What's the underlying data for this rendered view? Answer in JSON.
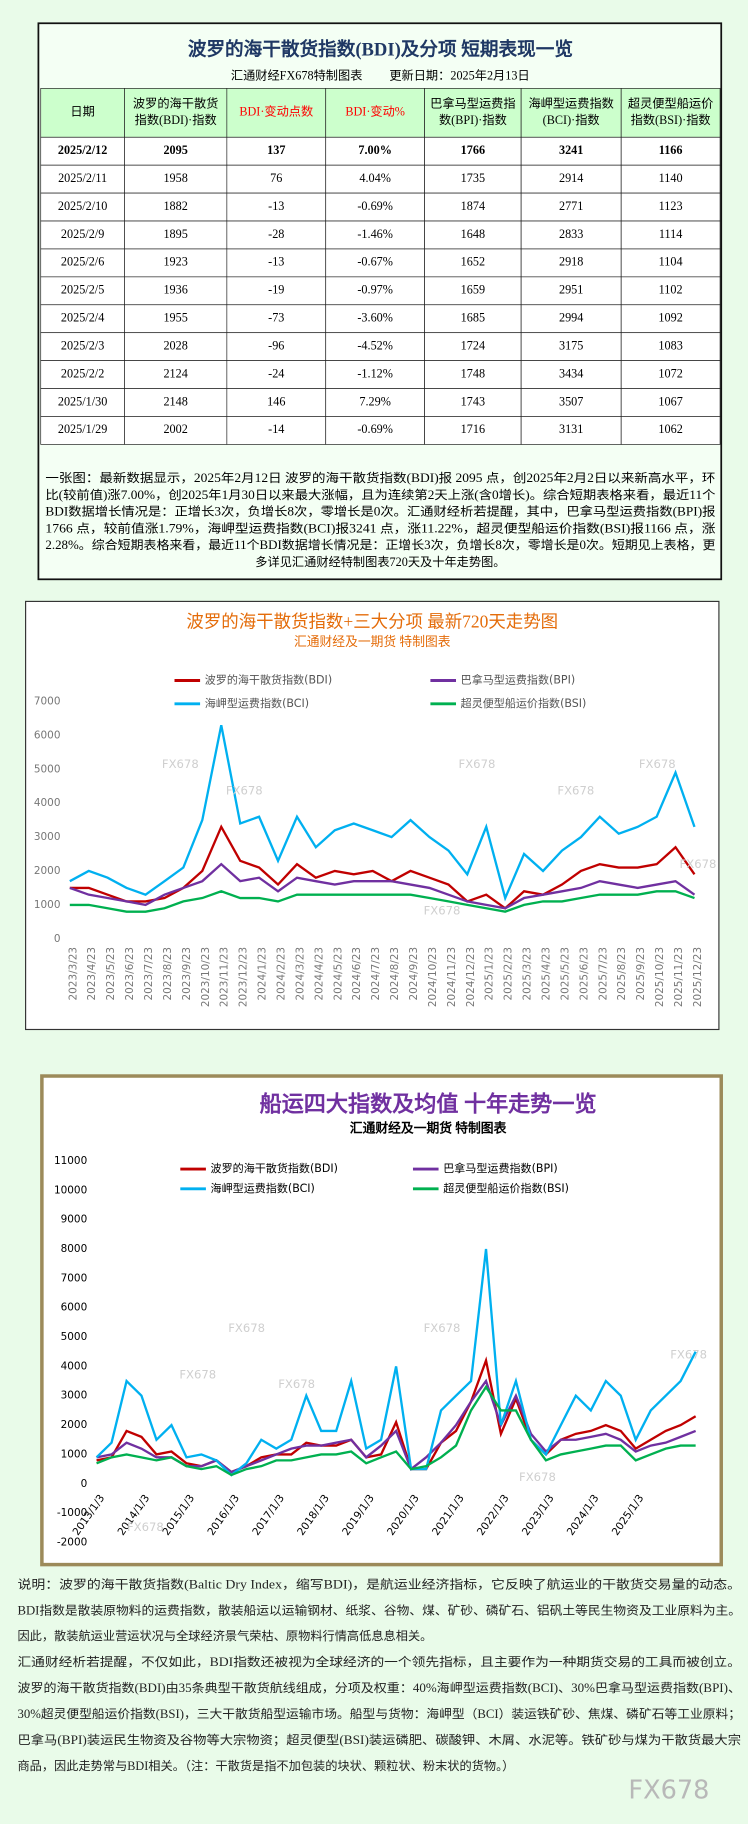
{
  "header": {
    "title": "波罗的海干散货指数(BDI)及分项 短期表现一览",
    "subtitle": "汇通财经FX678特制图表",
    "update": "更新日期：2025年2月13日"
  },
  "table": {
    "columns": [
      [
        "日期"
      ],
      [
        "波罗的海干散货",
        "指数(BDI)·指数"
      ],
      [
        "BDI·变动点数"
      ],
      [
        "BDI·变动%"
      ],
      [
        "巴拿马型运费指",
        "数(BPI)·指数"
      ],
      [
        "海岬型运费指数",
        "(BCI)·指数"
      ],
      [
        "超灵便型船运价",
        "指数(BSI)·指数"
      ]
    ],
    "rows": [
      [
        "2025/2/12",
        "2095",
        "137",
        "7.00%",
        "1766",
        "3241",
        "1166"
      ],
      [
        "2025/2/11",
        "1958",
        "76",
        "4.04%",
        "1735",
        "2914",
        "1140"
      ],
      [
        "2025/2/10",
        "1882",
        "-13",
        "-0.69%",
        "1874",
        "2771",
        "1123"
      ],
      [
        "2025/2/9",
        "1895",
        "-28",
        "-1.46%",
        "1648",
        "2833",
        "1114"
      ],
      [
        "2025/2/6",
        "1923",
        "-13",
        "-0.67%",
        "1652",
        "2918",
        "1104"
      ],
      [
        "2025/2/5",
        "1936",
        "-19",
        "-0.97%",
        "1659",
        "2951",
        "1102"
      ],
      [
        "2025/2/4",
        "1955",
        "-73",
        "-3.60%",
        "1685",
        "2994",
        "1092"
      ],
      [
        "2025/2/3",
        "2028",
        "-96",
        "-4.52%",
        "1724",
        "3175",
        "1083"
      ],
      [
        "2025/2/2",
        "2124",
        "-24",
        "-1.12%",
        "1748",
        "3434",
        "1072"
      ],
      [
        "2025/1/30",
        "2148",
        "146",
        "7.29%",
        "1743",
        "3507",
        "1067"
      ],
      [
        "2025/1/29",
        "2002",
        "-14",
        "-0.69%",
        "1716",
        "3131",
        "1062"
      ]
    ]
  },
  "summary": [
    "一张图：最新数据显示，2025年2月12日 波罗的海干散货指数(BDI)报 2095 点，创2025年2月2日以来新高水平，环",
    "比(较前值)涨7.00%，创2025年1月30日以来最大涨幅，且为连续第2天上涨(含0增长)。综合短期表格来看，最近11个",
    "BDI数据增长情况是：正增长3次，负增长8次，零增长是0次。汇通财经析若提醒，其中，巴拿马型运费指数(BPI)报",
    "1766 点，较前值涨1.79%，海岬型运费指数(BCI)报3241 点，涨11.22%，超灵便型船运价指数(BSI)报1166 点，涨",
    "2.28%。综合短期表格来看，最近11个BDI数据增长情况是：正增长3次，负增长8次，零增长是0次。短期见上表格，更",
    "多详见汇通财经特制图表720天及十年走势图。"
  ],
  "chart_data": [
    {
      "type": "line",
      "title": "波罗的海干散货指数+三大分项  最新720天走势图",
      "subtitle": "汇通财经及一期货  特制图表",
      "watermark": "FX678",
      "grid": false,
      "categories": [
        "2023/3/23",
        "2023/4/23",
        "2023/5/23",
        "2023/6/23",
        "2023/7/23",
        "2023/8/23",
        "2023/9/23",
        "2023/10/23",
        "2023/11/23",
        "2023/12/23",
        "2024/1/23",
        "2024/2/23",
        "2024/3/23",
        "2024/4/23",
        "2024/5/23",
        "2024/6/23",
        "2024/7/23",
        "2024/8/23",
        "2024/9/23",
        "2024/10/23",
        "2024/11/23",
        "2024/12/23",
        "2025/1/23",
        "2025/2/23",
        "2025/3/23",
        "2025/4/23",
        "2025/5/23",
        "2025/6/23",
        "2025/7/23",
        "2025/8/23",
        "2025/9/23",
        "2025/10/23",
        "2025/11/23",
        "2025/12/23"
      ],
      "ylim": [
        0,
        7000
      ],
      "yticks": [
        0,
        1000,
        2000,
        3000,
        4000,
        5000,
        6000,
        7000
      ],
      "series": [
        {
          "name": "波罗的海干散货指数(BDI)",
          "color": "#c00000",
          "values": [
            1500,
            1500,
            1300,
            1100,
            1100,
            1200,
            1500,
            2000,
            3300,
            2300,
            2100,
            1600,
            2200,
            1800,
            2000,
            1900,
            2000,
            1700,
            2000,
            1800,
            1600,
            1100,
            1300,
            900,
            1400,
            1300,
            1600,
            2000,
            2200,
            2100,
            2100,
            2200,
            2700,
            1900
          ]
        },
        {
          "name": "巴拿马型运费指数(BPI)",
          "color": "#7030a0",
          "values": [
            1500,
            1300,
            1200,
            1100,
            1000,
            1300,
            1500,
            1700,
            2200,
            1700,
            1800,
            1400,
            1800,
            1700,
            1600,
            1700,
            1700,
            1700,
            1600,
            1500,
            1300,
            1100,
            1000,
            900,
            1200,
            1300,
            1400,
            1500,
            1700,
            1600,
            1500,
            1600,
            1700,
            1300
          ]
        },
        {
          "name": "海岬型运费指数(BCI)",
          "color": "#00b0f0",
          "values": [
            1700,
            2000,
            1800,
            1500,
            1300,
            1700,
            2100,
            3500,
            6300,
            3400,
            3600,
            2300,
            3600,
            2700,
            3200,
            3400,
            3200,
            3000,
            3500,
            3000,
            2600,
            1900,
            3300,
            1200,
            2500,
            2000,
            2600,
            3000,
            3600,
            3100,
            3300,
            3600,
            4900,
            3300
          ]
        },
        {
          "name": "超灵便型船运价指数(BSI)",
          "color": "#00b050",
          "values": [
            1000,
            1000,
            900,
            800,
            800,
            900,
            1100,
            1200,
            1400,
            1200,
            1200,
            1100,
            1300,
            1300,
            1300,
            1300,
            1300,
            1300,
            1300,
            1200,
            1100,
            1000,
            900,
            800,
            1000,
            1100,
            1100,
            1200,
            1300,
            1300,
            1300,
            1400,
            1400,
            1200
          ]
        }
      ]
    },
    {
      "type": "line",
      "title": "船运四大指数及均值 十年走势一览",
      "subtitle": "汇通财经及一期货 特制图表",
      "watermark": "FX678",
      "grid": false,
      "categories": [
        "2013/1/3",
        null,
        null,
        "2014/1/3",
        null,
        null,
        "2015/1/3",
        null,
        null,
        "2016/1/3",
        null,
        null,
        "2017/1/3",
        null,
        null,
        "2018/1/3",
        null,
        null,
        "2019/1/3",
        null,
        null,
        "2020/1/3",
        null,
        null,
        "2021/1/3",
        null,
        null,
        "2022/1/3",
        null,
        null,
        "2023/1/3",
        null,
        null,
        "2024/1/3",
        null,
        null,
        "2025/1/3",
        null,
        null,
        null,
        null
      ],
      "ylim": [
        -2000,
        11000
      ],
      "yticks": [
        -2000,
        -1000,
        0,
        1000,
        2000,
        3000,
        4000,
        5000,
        6000,
        7000,
        8000,
        9000,
        10000,
        11000
      ],
      "series": [
        {
          "name": "波罗的海干散货指数(BDI)",
          "color": "#c00000",
          "values": [
            800,
            900,
            1800,
            1600,
            1000,
            1100,
            700,
            600,
            800,
            400,
            600,
            900,
            1000,
            1000,
            1400,
            1300,
            1300,
            1500,
            900,
            1000,
            2100,
            500,
            500,
            1400,
            1800,
            2800,
            4200,
            1700,
            2900,
            1500,
            1000,
            1500,
            1700,
            1800,
            2000,
            1800,
            1200,
            1500,
            1800,
            2000,
            2300
          ]
        },
        {
          "name": "巴拿马型运费指数(BPI)",
          "color": "#7030a0",
          "values": [
            900,
            1000,
            1400,
            1200,
            900,
            900,
            600,
            600,
            800,
            400,
            600,
            800,
            1000,
            1200,
            1300,
            1300,
            1400,
            1500,
            900,
            1300,
            1800,
            500,
            900,
            1400,
            2000,
            2800,
            3500,
            2000,
            3000,
            1700,
            1100,
            1500,
            1500,
            1600,
            1700,
            1500,
            1100,
            1300,
            1400,
            1600,
            1800
          ]
        },
        {
          "name": "海岬型运费指数(BCI)",
          "color": "#00b0f0",
          "values": [
            900,
            1400,
            3500,
            3000,
            1500,
            2000,
            900,
            1000,
            800,
            300,
            700,
            1500,
            1200,
            1500,
            3000,
            1800,
            1800,
            3500,
            1200,
            1500,
            4000,
            500,
            500,
            2500,
            3000,
            3500,
            8000,
            2000,
            3500,
            1500,
            1000,
            2000,
            3000,
            2500,
            3500,
            3000,
            1500,
            2500,
            3000,
            3500,
            4500
          ]
        },
        {
          "name": "超灵便型船运价指数(BSI)",
          "color": "#00b050",
          "values": [
            700,
            900,
            1000,
            900,
            800,
            900,
            600,
            500,
            600,
            300,
            500,
            600,
            800,
            800,
            900,
            1000,
            1000,
            1100,
            700,
            900,
            1100,
            500,
            600,
            900,
            1300,
            2500,
            3300,
            2500,
            2500,
            1500,
            800,
            1000,
            1100,
            1200,
            1300,
            1300,
            800,
            1000,
            1200,
            1300,
            1300
          ]
        }
      ]
    }
  ],
  "notes": [
    "说明：波罗的海干散货指数(Baltic Dry Index，缩写BDI)，是航运业经济指标，它反映了航运业的干散货交易量的动态。",
    "BDI指数是散装原物料的运费指数，散装船运以运输钢材、纸浆、谷物、煤、矿砂、磷矿石、铝矾土等民生物资及工业原料为主。",
    "因此，散装航运业营运状况与全球经济景气荣枯、原物料行情高低息息相关。",
    "汇通财经析若提醒，不仅如此，BDI指数还被视为全球经济的一个领先指标，且主要作为一种期货交易的工具而被创立。",
    "波罗的海干散货指数(BDI)由35条典型干散货航线组成，分项及权重：40%海岬型运费指数(BCI)、30%巴拿马型运费指数(BPI)、",
    "30%超灵便型船运价指数(BSI)，三大干散货船型运输市场。船型与货物：海岬型（BCI）装运铁矿砂、焦煤、磷矿石等工业原料；",
    "巴拿马(BPI)装运民生物资及谷物等大宗物资；超灵便型(BSI)装运磷肥、碳酸钾、木屑、水泥等。铁矿砂与煤为干散货最大宗",
    "商品，因此走势常与BDI相关。（注：干散货是指不加包装的块状、颗粒状、粉末状的货物。）"
  ],
  "watermark": "FX678"
}
